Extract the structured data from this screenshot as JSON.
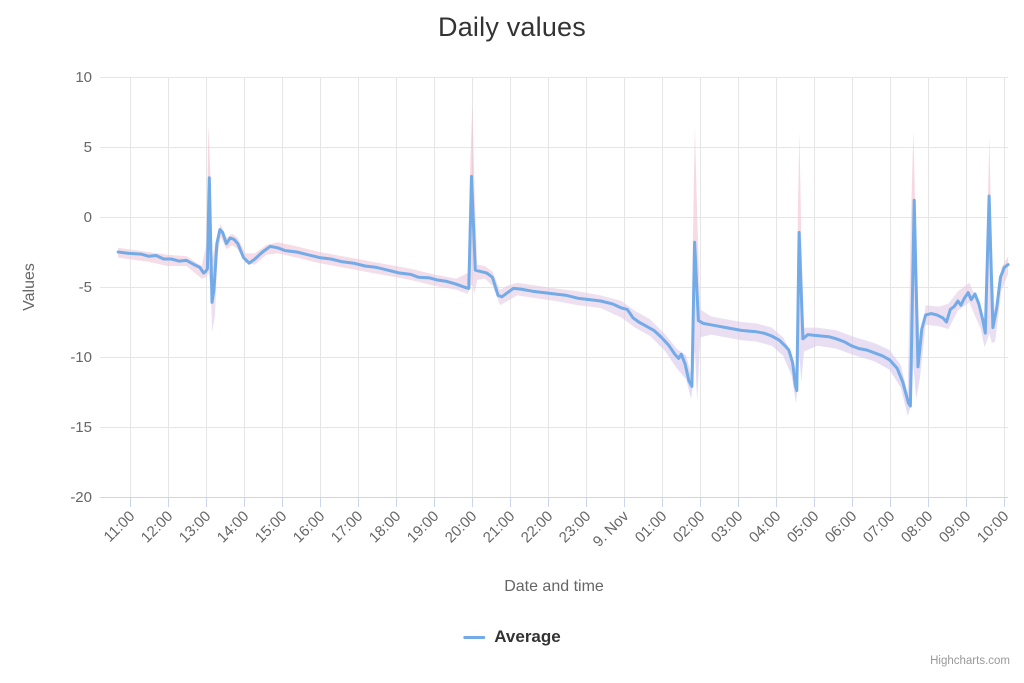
{
  "title": "Daily values",
  "credits": "Highcharts.com",
  "legend": {
    "items": [
      {
        "label": "Average"
      }
    ]
  },
  "chart_data": {
    "type": "line",
    "title": "Daily values",
    "xlabel": "Date and time",
    "ylabel": "Values",
    "ylim": [
      -20,
      10
    ],
    "y_ticks": [
      10,
      5,
      0,
      -5,
      -10,
      -15,
      -20
    ],
    "x_tick_labels": [
      "11:00",
      "12:00",
      "13:00",
      "14:00",
      "15:00",
      "16:00",
      "17:00",
      "18:00",
      "19:00",
      "20:00",
      "21:00",
      "22:00",
      "23:00",
      "9. Nov",
      "01:00",
      "02:00",
      "03:00",
      "04:00",
      "05:00",
      "06:00",
      "07:00",
      "08:00",
      "09:00",
      "10:00"
    ],
    "grid": true,
    "legend_position": "bottom-center",
    "colors": {
      "line": "#72abe8",
      "band_pink": "#f2bcca",
      "band_purple": "#d5c8ee",
      "grid": "#e6e6e6",
      "axis_line": "#ccd6eb",
      "label": "#666666",
      "title": "#333333",
      "credits": "#999999"
    },
    "series": [
      {
        "name": "Average",
        "points": [
          [
            -0.3,
            -2.5
          ],
          [
            0,
            -2.6
          ],
          [
            0.3,
            -2.65
          ],
          [
            0.5,
            -2.8
          ],
          [
            0.7,
            -2.75
          ],
          [
            0.9,
            -3.0
          ],
          [
            1.1,
            -3.0
          ],
          [
            1.3,
            -3.15
          ],
          [
            1.5,
            -3.1
          ],
          [
            1.7,
            -3.4
          ],
          [
            1.85,
            -3.6
          ],
          [
            1.95,
            -4.0
          ],
          [
            2.0,
            -3.9
          ],
          [
            2.05,
            -3.7
          ],
          [
            2.1,
            2.8
          ],
          [
            2.17,
            -6.1
          ],
          [
            2.22,
            -5.2
          ],
          [
            2.3,
            -1.9
          ],
          [
            2.38,
            -0.9
          ],
          [
            2.45,
            -1.1
          ],
          [
            2.55,
            -1.9
          ],
          [
            2.65,
            -1.5
          ],
          [
            2.75,
            -1.6
          ],
          [
            2.85,
            -1.9
          ],
          [
            3.0,
            -2.9
          ],
          [
            3.15,
            -3.3
          ],
          [
            3.3,
            -3.0
          ],
          [
            3.5,
            -2.5
          ],
          [
            3.7,
            -2.1
          ],
          [
            3.9,
            -2.2
          ],
          [
            4.1,
            -2.4
          ],
          [
            4.4,
            -2.5
          ],
          [
            4.7,
            -2.7
          ],
          [
            5.0,
            -2.9
          ],
          [
            5.3,
            -3.0
          ],
          [
            5.6,
            -3.2
          ],
          [
            5.9,
            -3.3
          ],
          [
            6.2,
            -3.5
          ],
          [
            6.5,
            -3.6
          ],
          [
            6.8,
            -3.8
          ],
          [
            7.1,
            -4.0
          ],
          [
            7.4,
            -4.1
          ],
          [
            7.6,
            -4.3
          ],
          [
            7.9,
            -4.35
          ],
          [
            8.1,
            -4.5
          ],
          [
            8.35,
            -4.6
          ],
          [
            8.6,
            -4.8
          ],
          [
            8.8,
            -5.0
          ],
          [
            8.93,
            -5.1
          ],
          [
            9.0,
            2.9
          ],
          [
            9.1,
            -3.8
          ],
          [
            9.25,
            -3.9
          ],
          [
            9.4,
            -4.0
          ],
          [
            9.55,
            -4.3
          ],
          [
            9.7,
            -5.6
          ],
          [
            9.8,
            -5.7
          ],
          [
            9.95,
            -5.4
          ],
          [
            10.1,
            -5.1
          ],
          [
            10.3,
            -5.15
          ],
          [
            10.6,
            -5.3
          ],
          [
            10.9,
            -5.4
          ],
          [
            11.2,
            -5.5
          ],
          [
            11.5,
            -5.6
          ],
          [
            11.8,
            -5.8
          ],
          [
            12.1,
            -5.9
          ],
          [
            12.4,
            -6.0
          ],
          [
            12.7,
            -6.2
          ],
          [
            12.95,
            -6.5
          ],
          [
            13.1,
            -6.6
          ],
          [
            13.25,
            -7.2
          ],
          [
            13.4,
            -7.5
          ],
          [
            13.6,
            -7.8
          ],
          [
            13.8,
            -8.1
          ],
          [
            14.0,
            -8.6
          ],
          [
            14.2,
            -9.2
          ],
          [
            14.35,
            -9.8
          ],
          [
            14.45,
            -10.1
          ],
          [
            14.52,
            -9.8
          ],
          [
            14.62,
            -10.5
          ],
          [
            14.72,
            -11.7
          ],
          [
            14.8,
            -12.1
          ],
          [
            14.87,
            -1.8
          ],
          [
            14.97,
            -7.4
          ],
          [
            15.1,
            -7.6
          ],
          [
            15.3,
            -7.7
          ],
          [
            15.5,
            -7.8
          ],
          [
            15.7,
            -7.9
          ],
          [
            15.9,
            -8.0
          ],
          [
            16.1,
            -8.1
          ],
          [
            16.3,
            -8.15
          ],
          [
            16.5,
            -8.2
          ],
          [
            16.7,
            -8.3
          ],
          [
            16.9,
            -8.5
          ],
          [
            17.1,
            -8.8
          ],
          [
            17.25,
            -9.2
          ],
          [
            17.35,
            -9.5
          ],
          [
            17.45,
            -10.4
          ],
          [
            17.52,
            -12.0
          ],
          [
            17.56,
            -12.4
          ],
          [
            17.62,
            -1.1
          ],
          [
            17.72,
            -8.7
          ],
          [
            17.85,
            -8.4
          ],
          [
            18.0,
            -8.45
          ],
          [
            18.2,
            -8.5
          ],
          [
            18.4,
            -8.55
          ],
          [
            18.6,
            -8.7
          ],
          [
            18.8,
            -8.9
          ],
          [
            19.0,
            -9.2
          ],
          [
            19.2,
            -9.4
          ],
          [
            19.4,
            -9.5
          ],
          [
            19.6,
            -9.7
          ],
          [
            19.8,
            -9.9
          ],
          [
            20.0,
            -10.2
          ],
          [
            20.2,
            -10.8
          ],
          [
            20.35,
            -11.8
          ],
          [
            20.5,
            -13.3
          ],
          [
            20.55,
            -13.5
          ],
          [
            20.65,
            1.2
          ],
          [
            20.75,
            -10.7
          ],
          [
            20.85,
            -8.0
          ],
          [
            20.95,
            -7.0
          ],
          [
            21.1,
            -6.9
          ],
          [
            21.25,
            -7.0
          ],
          [
            21.4,
            -7.2
          ],
          [
            21.5,
            -7.5
          ],
          [
            21.6,
            -6.6
          ],
          [
            21.7,
            -6.4
          ],
          [
            21.8,
            -6.0
          ],
          [
            21.88,
            -6.3
          ],
          [
            21.97,
            -5.8
          ],
          [
            22.07,
            -5.4
          ],
          [
            22.15,
            -5.9
          ],
          [
            22.25,
            -5.5
          ],
          [
            22.35,
            -6.2
          ],
          [
            22.45,
            -7.3
          ],
          [
            22.52,
            -8.3
          ],
          [
            22.62,
            1.5
          ],
          [
            22.72,
            -7.9
          ],
          [
            22.82,
            -6.5
          ],
          [
            22.92,
            -4.3
          ],
          [
            23.02,
            -3.6
          ],
          [
            23.12,
            -3.4
          ]
        ]
      }
    ],
    "range_band": {
      "name": "Average range",
      "points_t_lo_hi": [
        [
          -0.3,
          -2.9,
          -2.2
        ],
        [
          0.5,
          -3.2,
          -2.5
        ],
        [
          1.0,
          -3.5,
          -2.7
        ],
        [
          1.5,
          -3.5,
          -2.8
        ],
        [
          1.9,
          -4.4,
          -3.5
        ],
        [
          2.02,
          -4.3,
          -2.0
        ],
        [
          2.08,
          -4.0,
          6.6
        ],
        [
          2.13,
          -5.0,
          3.0
        ],
        [
          2.18,
          -8.2,
          -3.0
        ],
        [
          2.25,
          -7.0,
          -2.0
        ],
        [
          2.32,
          -2.6,
          -1.2
        ],
        [
          2.4,
          -1.4,
          -0.5
        ],
        [
          2.55,
          -2.3,
          -1.5
        ],
        [
          2.7,
          -2.0,
          -1.2
        ],
        [
          2.85,
          -2.3,
          -1.5
        ],
        [
          3.05,
          -3.3,
          -2.6
        ],
        [
          3.3,
          -3.4,
          -2.6
        ],
        [
          3.6,
          -2.7,
          -2.0
        ],
        [
          3.9,
          -2.6,
          -1.8
        ],
        [
          4.4,
          -2.9,
          -2.1
        ],
        [
          5.0,
          -3.3,
          -2.5
        ],
        [
          5.6,
          -3.6,
          -2.8
        ],
        [
          6.2,
          -3.9,
          -3.1
        ],
        [
          6.8,
          -4.2,
          -3.4
        ],
        [
          7.4,
          -4.5,
          -3.7
        ],
        [
          8.0,
          -4.9,
          -4.1
        ],
        [
          8.6,
          -5.2,
          -4.4
        ],
        [
          8.9,
          -5.5,
          -4.0
        ],
        [
          8.97,
          -5.0,
          4.0
        ],
        [
          9.02,
          -4.8,
          8.1
        ],
        [
          9.08,
          -5.5,
          2.0
        ],
        [
          9.15,
          -4.5,
          -3.4
        ],
        [
          9.35,
          -4.4,
          -3.5
        ],
        [
          9.55,
          -4.9,
          -3.9
        ],
        [
          9.75,
          -6.3,
          -5.2
        ],
        [
          9.95,
          -6.0,
          -4.9
        ],
        [
          10.2,
          -5.6,
          -4.7
        ],
        [
          10.7,
          -5.8,
          -4.9
        ],
        [
          11.2,
          -6.0,
          -5.1
        ],
        [
          11.8,
          -6.3,
          -5.3
        ],
        [
          12.4,
          -6.5,
          -5.6
        ],
        [
          12.95,
          -7.2,
          -6.0
        ],
        [
          13.3,
          -7.9,
          -6.7
        ],
        [
          13.7,
          -8.5,
          -7.3
        ],
        [
          14.1,
          -9.6,
          -8.4
        ],
        [
          14.4,
          -10.8,
          -9.4
        ],
        [
          14.65,
          -11.6,
          -9.9
        ],
        [
          14.78,
          -13.0,
          -11.3
        ],
        [
          14.83,
          -12.0,
          -1.0
        ],
        [
          14.88,
          -9.5,
          6.4
        ],
        [
          14.94,
          -13.2,
          0.0
        ],
        [
          15.02,
          -8.6,
          -6.6
        ],
        [
          15.3,
          -8.4,
          -7.1
        ],
        [
          15.7,
          -8.6,
          -7.3
        ],
        [
          16.1,
          -8.8,
          -7.5
        ],
        [
          16.5,
          -8.9,
          -7.6
        ],
        [
          16.9,
          -9.2,
          -7.9
        ],
        [
          17.2,
          -9.9,
          -8.6
        ],
        [
          17.42,
          -11.3,
          -9.7
        ],
        [
          17.54,
          -13.3,
          -11.0
        ],
        [
          17.59,
          -12.0,
          0.5
        ],
        [
          17.63,
          -9.8,
          6.1
        ],
        [
          17.68,
          -11.8,
          -1.5
        ],
        [
          17.75,
          -9.6,
          -7.9
        ],
        [
          18.1,
          -9.2,
          -7.9
        ],
        [
          18.6,
          -9.4,
          -8.1
        ],
        [
          19.1,
          -9.9,
          -8.6
        ],
        [
          19.6,
          -10.3,
          -9.0
        ],
        [
          20.0,
          -10.9,
          -9.5
        ],
        [
          20.3,
          -12.2,
          -10.6
        ],
        [
          20.48,
          -14.2,
          -12.6
        ],
        [
          20.56,
          -13.5,
          -0.5
        ],
        [
          20.63,
          -10.5,
          6.2
        ],
        [
          20.7,
          -13.0,
          -2.0
        ],
        [
          20.8,
          -11.5,
          -9.8
        ],
        [
          20.95,
          -7.7,
          -6.3
        ],
        [
          21.3,
          -7.8,
          -6.4
        ],
        [
          21.55,
          -8.0,
          -6.2
        ],
        [
          21.8,
          -6.7,
          -5.3
        ],
        [
          22.1,
          -6.1,
          -4.7
        ],
        [
          22.4,
          -8.0,
          -6.5
        ],
        [
          22.5,
          -9.3,
          -7.5
        ],
        [
          22.57,
          -8.8,
          -1.0
        ],
        [
          22.63,
          -8.3,
          5.8
        ],
        [
          22.69,
          -9.0,
          -3.0
        ],
        [
          22.78,
          -8.9,
          -7.0
        ],
        [
          22.95,
          -5.2,
          -3.6
        ],
        [
          23.12,
          -4.1,
          -2.8
        ]
      ]
    }
  }
}
